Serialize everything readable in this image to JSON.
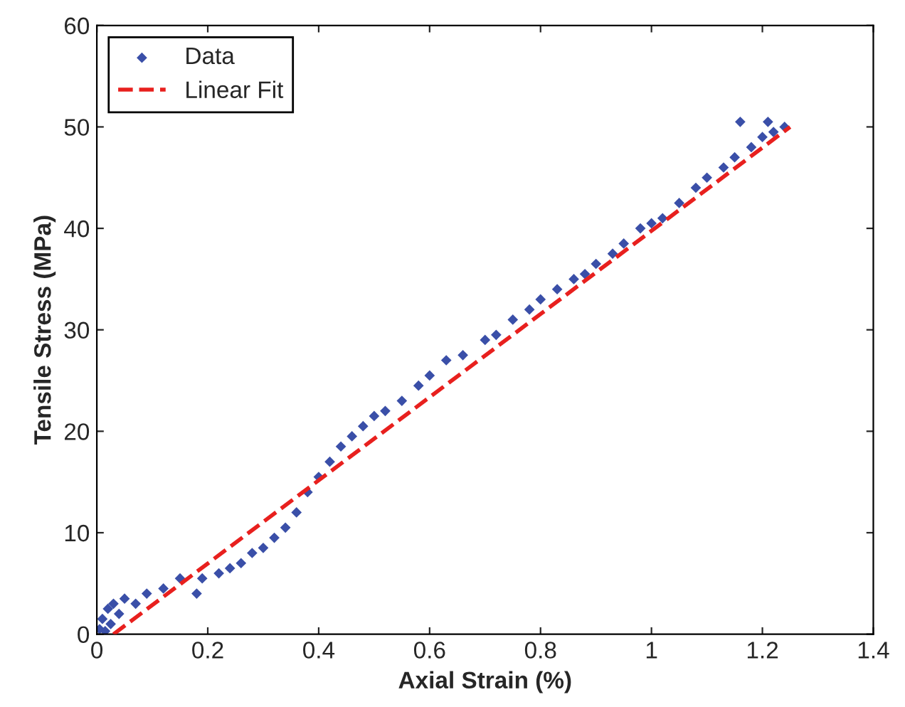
{
  "chart_data": {
    "type": "scatter",
    "xlabel": "Axial Strain (%)",
    "ylabel": "Tensile Stress (MPa)",
    "xlim": [
      0,
      1.4
    ],
    "ylim": [
      0,
      60
    ],
    "xticks": [
      0,
      0.2,
      0.4,
      0.6,
      0.8,
      1,
      1.2,
      1.4
    ],
    "yticks": [
      0,
      10,
      20,
      30,
      40,
      50,
      60
    ],
    "grid": false,
    "legend": "top left",
    "series": [
      {
        "name": "Data",
        "color": "#3a4fa8",
        "marker": "diamond",
        "x": [
          0.005,
          0.01,
          0.015,
          0.02,
          0.025,
          0.03,
          0.04,
          0.05,
          0.07,
          0.09,
          0.12,
          0.15,
          0.18,
          0.19,
          0.22,
          0.24,
          0.26,
          0.28,
          0.3,
          0.32,
          0.34,
          0.36,
          0.38,
          0.4,
          0.42,
          0.44,
          0.46,
          0.48,
          0.5,
          0.52,
          0.55,
          0.58,
          0.6,
          0.63,
          0.66,
          0.7,
          0.72,
          0.75,
          0.78,
          0.8,
          0.83,
          0.86,
          0.88,
          0.9,
          0.93,
          0.95,
          0.98,
          1.0,
          1.02,
          1.05,
          1.08,
          1.1,
          1.13,
          1.15,
          1.16,
          1.18,
          1.2,
          1.21,
          1.22,
          1.24
        ],
        "values": [
          0.5,
          1.5,
          0.3,
          2.5,
          1,
          3,
          2,
          3.5,
          3,
          4,
          4.5,
          5.5,
          4,
          5.5,
          6,
          6.5,
          7,
          8,
          8.5,
          9.5,
          10.5,
          12,
          14,
          15.5,
          17,
          18.5,
          19.5,
          20.5,
          21.5,
          22,
          23,
          24.5,
          25.5,
          27,
          27.5,
          29,
          29.5,
          31,
          32,
          33,
          34,
          35,
          35.5,
          36.5,
          37.5,
          38.5,
          40,
          40.5,
          41,
          42.5,
          44,
          45,
          46,
          47,
          50.5,
          48,
          49,
          50.5,
          49.5,
          50
        ]
      },
      {
        "name": "Linear Fit",
        "type": "line",
        "color": "#e8201e",
        "line_style": "dashed",
        "marker": "none",
        "x": [
          0.03,
          1.25
        ],
        "values": [
          0,
          50
        ]
      }
    ]
  }
}
